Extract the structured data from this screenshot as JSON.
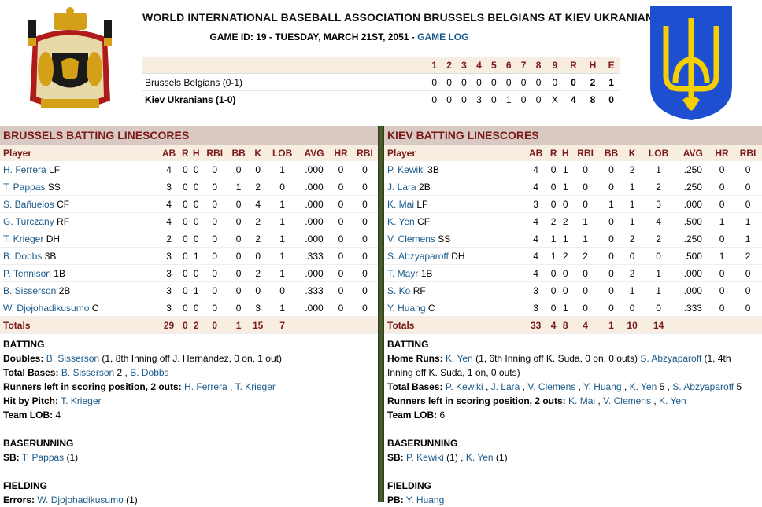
{
  "header": {
    "title": "WORLD INTERNATIONAL BASEBALL ASSOCIATION BRUSSELS BELGIANS AT KIEV UKRANIANS",
    "game_info": "GAME ID: 19 - TUESDAY, MARCH 21ST, 2051 - ",
    "game_log_link": "GAME LOG"
  },
  "linescore": {
    "headers": [
      "",
      "1",
      "2",
      "3",
      "4",
      "5",
      "6",
      "7",
      "8",
      "9",
      "R",
      "H",
      "E"
    ],
    "rows": [
      {
        "team": "Brussels Belgians (0-1)",
        "bold": false,
        "innings": [
          "0",
          "0",
          "0",
          "0",
          "0",
          "0",
          "0",
          "0",
          "0"
        ],
        "R": "0",
        "H": "2",
        "E": "1"
      },
      {
        "team": "Kiev Ukranians (1-0)",
        "bold": true,
        "innings": [
          "0",
          "0",
          "0",
          "3",
          "0",
          "1",
          "0",
          "0",
          "X"
        ],
        "R": "4",
        "H": "8",
        "E": "0"
      }
    ]
  },
  "columns": [
    "Player",
    "AB",
    "R",
    "H",
    "RBI",
    "BB",
    "K",
    "LOB",
    "AVG",
    "HR",
    "RBI"
  ],
  "left": {
    "title": "BRUSSELS BATTING LINESCORES",
    "players": [
      {
        "name": "H. Ferrera",
        "pos": "LF",
        "stats": [
          "4",
          "0",
          "0",
          "0",
          "0",
          "0",
          "1",
          ".000",
          "0",
          "0"
        ]
      },
      {
        "name": "T. Pappas",
        "pos": "SS",
        "stats": [
          "3",
          "0",
          "0",
          "0",
          "1",
          "2",
          "0",
          ".000",
          "0",
          "0"
        ]
      },
      {
        "name": "S. Bañuelos",
        "pos": "CF",
        "stats": [
          "4",
          "0",
          "0",
          "0",
          "0",
          "4",
          "1",
          ".000",
          "0",
          "0"
        ]
      },
      {
        "name": "G. Turczany",
        "pos": "RF",
        "stats": [
          "4",
          "0",
          "0",
          "0",
          "0",
          "2",
          "1",
          ".000",
          "0",
          "0"
        ]
      },
      {
        "name": "T. Krieger",
        "pos": "DH",
        "stats": [
          "2",
          "0",
          "0",
          "0",
          "0",
          "2",
          "1",
          ".000",
          "0",
          "0"
        ]
      },
      {
        "name": "B. Dobbs",
        "pos": "3B",
        "stats": [
          "3",
          "0",
          "1",
          "0",
          "0",
          "0",
          "1",
          ".333",
          "0",
          "0"
        ]
      },
      {
        "name": "P. Tennison",
        "pos": "1B",
        "stats": [
          "3",
          "0",
          "0",
          "0",
          "0",
          "2",
          "1",
          ".000",
          "0",
          "0"
        ]
      },
      {
        "name": "B. Sisserson",
        "pos": "2B",
        "stats": [
          "3",
          "0",
          "1",
          "0",
          "0",
          "0",
          "0",
          ".333",
          "0",
          "0"
        ]
      },
      {
        "name": "W. Djojohadikusumo",
        "pos": "C",
        "stats": [
          "3",
          "0",
          "0",
          "0",
          "0",
          "3",
          "1",
          ".000",
          "0",
          "0"
        ]
      }
    ],
    "totals": {
      "label": "Totals",
      "stats": [
        "29",
        "0",
        "2",
        "0",
        "1",
        "15",
        "7",
        "",
        "",
        ""
      ]
    },
    "batting_label": "BATTING",
    "doubles_label": "Doubles:",
    "doubles_player": "B. Sisserson",
    "doubles_detail": " (1, 8th Inning off J. Hernández, 0 on, 1 out)",
    "tb_label": "Total Bases:",
    "tb_p1": "B. Sisserson",
    "tb_p1_num": " 2 , ",
    "tb_p2": "B. Dobbs",
    "risp_label": "Runners left in scoring position, 2 outs:",
    "risp_p1": "H. Ferrera",
    "risp_sep": " , ",
    "risp_p2": "T. Krieger",
    "hbp_label": "Hit by Pitch:",
    "hbp_player": "T. Krieger",
    "lob_label": "Team LOB:",
    "lob_value": " 4",
    "baserunning_label": "BASERUNNING",
    "sb_label": "SB:",
    "sb_player": "T. Pappas",
    "sb_detail": " (1)",
    "fielding_label": "FIELDING",
    "errors_label": "Errors:",
    "errors_player": "W. Djojohadikusumo",
    "errors_detail": " (1)"
  },
  "right": {
    "title": "KIEV BATTING LINESCORES",
    "players": [
      {
        "name": "P. Kewiki",
        "pos": "3B",
        "stats": [
          "4",
          "0",
          "1",
          "0",
          "0",
          "2",
          "1",
          ".250",
          "0",
          "0"
        ]
      },
      {
        "name": "J. Lara",
        "pos": "2B",
        "stats": [
          "4",
          "0",
          "1",
          "0",
          "0",
          "1",
          "2",
          ".250",
          "0",
          "0"
        ]
      },
      {
        "name": "K. Mai",
        "pos": "LF",
        "stats": [
          "3",
          "0",
          "0",
          "0",
          "1",
          "1",
          "3",
          ".000",
          "0",
          "0"
        ]
      },
      {
        "name": "K. Yen",
        "pos": "CF",
        "stats": [
          "4",
          "2",
          "2",
          "1",
          "0",
          "1",
          "4",
          ".500",
          "1",
          "1"
        ]
      },
      {
        "name": "V. Clemens",
        "pos": "SS",
        "stats": [
          "4",
          "1",
          "1",
          "1",
          "0",
          "2",
          "2",
          ".250",
          "0",
          "1"
        ]
      },
      {
        "name": "S. Abzyaparoff",
        "pos": "DH",
        "stats": [
          "4",
          "1",
          "2",
          "2",
          "0",
          "0",
          "0",
          ".500",
          "1",
          "2"
        ]
      },
      {
        "name": "T. Mayr",
        "pos": "1B",
        "stats": [
          "4",
          "0",
          "0",
          "0",
          "0",
          "2",
          "1",
          ".000",
          "0",
          "0"
        ]
      },
      {
        "name": "S. Ko",
        "pos": "RF",
        "stats": [
          "3",
          "0",
          "0",
          "0",
          "0",
          "1",
          "1",
          ".000",
          "0",
          "0"
        ]
      },
      {
        "name": "Y. Huang",
        "pos": "C",
        "stats": [
          "3",
          "0",
          "1",
          "0",
          "0",
          "0",
          "0",
          ".333",
          "0",
          "0"
        ]
      }
    ],
    "totals": {
      "label": "Totals",
      "stats": [
        "33",
        "4",
        "8",
        "4",
        "1",
        "10",
        "14",
        "",
        "",
        ""
      ]
    },
    "batting_label": "BATTING",
    "hr_label": "Home Runs:",
    "hr_p1": "K. Yen",
    "hr_p1_detail": " (1, 6th Inning off K. Suda, 0 on, 0 outs) ",
    "hr_p2": "S. Abzyaparoff",
    "hr_p2_detail": " (1, 4th Inning off K. Suda, 1 on, 0 outs)",
    "tb_label": "Total Bases:",
    "tb_list": [
      {
        "name": "P. Kewiki",
        "after": " , "
      },
      {
        "name": "J. Lara",
        "after": " , "
      },
      {
        "name": "V. Clemens",
        "after": " , "
      },
      {
        "name": "Y. Huang",
        "after": " , "
      },
      {
        "name": "K. Yen",
        "after": " 5 , "
      },
      {
        "name": "S. Abzyaparoff",
        "after": " 5"
      }
    ],
    "risp_label": "Runners left in scoring position, 2 outs:",
    "risp_list": [
      {
        "name": "K. Mai",
        "after": " , "
      },
      {
        "name": "V. Clemens",
        "after": " , "
      },
      {
        "name": "K. Yen",
        "after": ""
      }
    ],
    "lob_label": "Team LOB:",
    "lob_value": " 6",
    "baserunning_label": "BASERUNNING",
    "sb_label": "SB:",
    "sb_p1": "P. Kewiki",
    "sb_p1_detail": " (1) , ",
    "sb_p2": "K. Yen",
    "sb_p2_detail": " (1)",
    "fielding_label": "FIELDING",
    "pb_label": "PB:",
    "pb_player": "Y. Huang"
  },
  "logos": {
    "left": "belgium-coat-of-arms-icon",
    "right": "ukraine-trident-icon"
  },
  "colors": {
    "header_text": "#7a1a1a",
    "link": "#1a5a8a",
    "panel_head": "#d9c9c3",
    "row_head": "#f7ede0",
    "divider": "#51622d"
  }
}
